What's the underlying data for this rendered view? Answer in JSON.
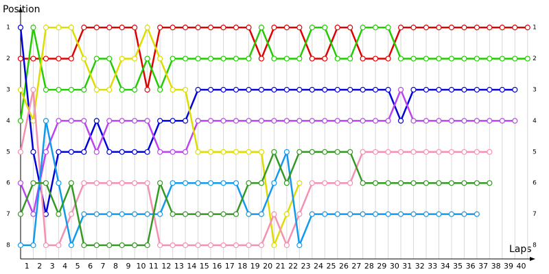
{
  "chart_data": {
    "type": "line",
    "ylabel": "Position",
    "xlabel": "Laps",
    "x": [
      0,
      1,
      2,
      3,
      4,
      5,
      6,
      7,
      8,
      9,
      10,
      11,
      12,
      13,
      14,
      15,
      16,
      17,
      18,
      19,
      20,
      21,
      22,
      23,
      24,
      25,
      26,
      27,
      28,
      29,
      30,
      31,
      32,
      33,
      34,
      35,
      36,
      37,
      38,
      39,
      40
    ],
    "xlim": [
      0,
      40.5
    ],
    "xticks": [
      1,
      2,
      3,
      4,
      5,
      6,
      7,
      8,
      9,
      10,
      11,
      12,
      13,
      14,
      15,
      16,
      17,
      18,
      19,
      20,
      21,
      22,
      23,
      24,
      25,
      26,
      27,
      28,
      29,
      30,
      31,
      32,
      33,
      34,
      35,
      36,
      37,
      38,
      39,
      40
    ],
    "ylim": [
      8.44,
      0.38
    ],
    "yticks": [
      1,
      2,
      3,
      4,
      5,
      6,
      7,
      8
    ],
    "grid": true,
    "series": [
      {
        "color": "#e00000",
        "values": [
          2,
          2,
          2,
          2,
          2,
          1,
          1,
          1,
          1,
          1,
          3,
          1,
          1,
          1,
          1,
          1,
          1,
          1,
          1,
          2,
          1,
          1,
          1,
          2,
          2,
          1,
          1,
          2,
          2,
          2,
          1,
          1,
          1,
          1,
          1,
          1,
          1,
          1,
          1,
          1,
          1
        ]
      },
      {
        "color": "#22cc00",
        "values": [
          4,
          1,
          3,
          3,
          3,
          3,
          2,
          2,
          3,
          3,
          2,
          3,
          2,
          2,
          2,
          2,
          2,
          2,
          2,
          1,
          2,
          2,
          2,
          1,
          1,
          2,
          2,
          1,
          1,
          1,
          2,
          2,
          2,
          2,
          2,
          2,
          2,
          2,
          2,
          2,
          2
        ]
      },
      {
        "color": "#0000dd",
        "values": [
          1,
          5,
          7,
          5,
          5,
          5,
          4,
          5,
          5,
          5,
          5,
          4,
          4,
          4,
          3,
          3,
          3,
          3,
          3,
          3,
          3,
          3,
          3,
          3,
          3,
          3,
          3,
          3,
          3,
          3,
          4,
          3,
          3,
          3,
          3,
          3,
          3,
          3,
          3,
          3,
          null
        ]
      },
      {
        "color": "#bb44ee",
        "values": [
          6,
          7,
          5,
          4,
          4,
          4,
          5,
          4,
          4,
          4,
          4,
          5,
          5,
          5,
          4,
          4,
          4,
          4,
          4,
          4,
          4,
          4,
          4,
          4,
          4,
          4,
          4,
          4,
          4,
          4,
          3,
          4,
          4,
          4,
          4,
          4,
          4,
          4,
          4,
          4,
          null
        ]
      },
      {
        "color": "#dddd00",
        "values": [
          3,
          4,
          1,
          1,
          1,
          2,
          3,
          3,
          2,
          2,
          1,
          2,
          3,
          3,
          5,
          5,
          5,
          5,
          5,
          5,
          8,
          7,
          6,
          null,
          null,
          null,
          null,
          null,
          null,
          null,
          null,
          null,
          null,
          null,
          null,
          null,
          null,
          null,
          null,
          null,
          null
        ]
      },
      {
        "color": "#f590b0",
        "values": [
          5,
          3,
          8,
          8,
          7,
          6,
          6,
          6,
          6,
          6,
          6,
          8,
          8,
          8,
          8,
          8,
          8,
          8,
          8,
          8,
          7,
          8,
          7,
          6,
          6,
          6,
          6,
          5,
          5,
          5,
          5,
          5,
          5,
          5,
          5,
          5,
          5,
          5,
          null,
          null,
          null
        ]
      },
      {
        "color": "#1199ee",
        "values": [
          8,
          8,
          4,
          6,
          8,
          7,
          7,
          7,
          7,
          7,
          7,
          7,
          6,
          6,
          6,
          6,
          6,
          6,
          7,
          7,
          6,
          5,
          8,
          7,
          7,
          7,
          7,
          7,
          7,
          7,
          7,
          7,
          7,
          7,
          7,
          7,
          7,
          null,
          null,
          null,
          null
        ]
      },
      {
        "color": "#339922",
        "values": [
          7,
          6,
          6,
          7,
          6,
          8,
          8,
          8,
          8,
          8,
          8,
          6,
          7,
          7,
          7,
          7,
          7,
          7,
          6,
          6,
          5,
          6,
          5,
          5,
          5,
          5,
          5,
          6,
          6,
          6,
          6,
          6,
          6,
          6,
          6,
          6,
          6,
          6,
          null,
          null,
          null
        ]
      }
    ]
  }
}
